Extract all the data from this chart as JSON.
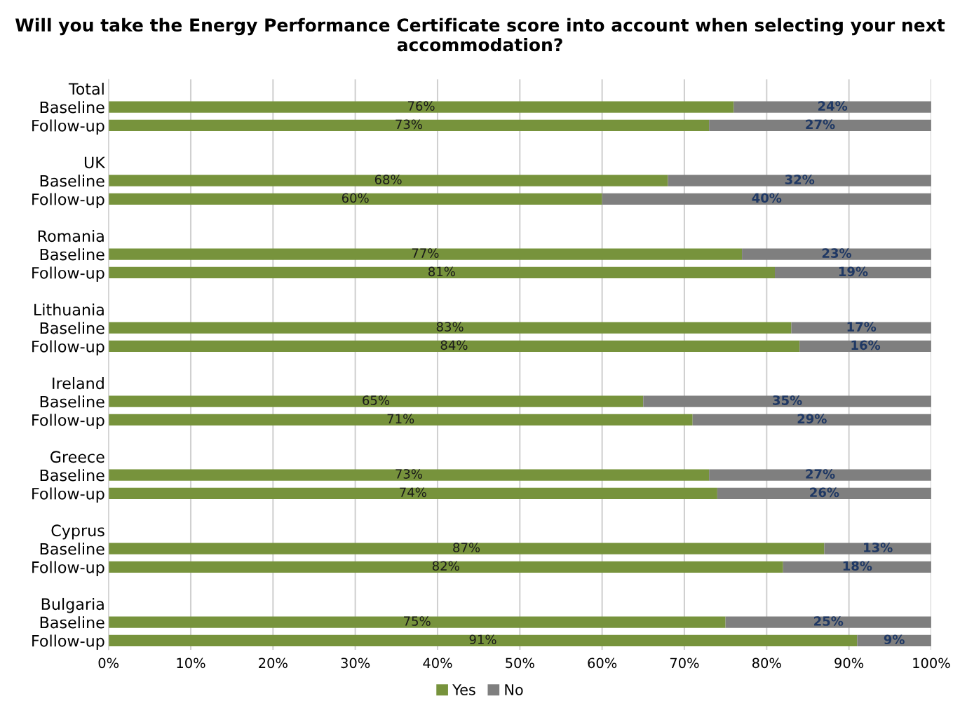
{
  "chart_data": {
    "type": "bar",
    "orientation": "horizontal",
    "stacked": true,
    "title": "Will you take the Energy Performance Certificate score into account when selecting your next accommodation?",
    "categories": [
      "Total",
      "Baseline",
      "Follow-up",
      null,
      "UK",
      "Baseline",
      "Follow-up",
      null,
      "Romania",
      "Baseline",
      "Follow-up",
      null,
      "Lithuania",
      "Baseline",
      "Follow-up",
      null,
      "Ireland",
      "Baseline",
      "Follow-up",
      null,
      "Greece",
      "Baseline",
      "Follow-up",
      null,
      "Cyprus",
      "Baseline",
      "Follow-up",
      null,
      "Bulgaria",
      "Baseline",
      "Follow-up"
    ],
    "series": [
      {
        "name": "Yes",
        "color": "#77933c",
        "values": [
          null,
          76,
          73,
          null,
          null,
          68,
          60,
          null,
          null,
          77,
          81,
          null,
          null,
          83,
          84,
          null,
          null,
          65,
          71,
          null,
          null,
          73,
          74,
          null,
          null,
          87,
          82,
          null,
          null,
          75,
          91
        ],
        "value_labels": [
          null,
          "76%",
          "73%",
          null,
          null,
          "68%",
          "60%",
          null,
          null,
          "77%",
          "81%",
          null,
          null,
          "83%",
          "84%",
          null,
          null,
          "65%",
          "71%",
          null,
          null,
          "73%",
          "74%",
          null,
          null,
          "87%",
          "82%",
          null,
          null,
          "75%",
          "91%"
        ]
      },
      {
        "name": "No",
        "color": "#7f7f7f",
        "values": [
          null,
          24,
          27,
          null,
          null,
          32,
          40,
          null,
          null,
          23,
          19,
          null,
          null,
          17,
          16,
          null,
          null,
          35,
          29,
          null,
          null,
          27,
          26,
          null,
          null,
          13,
          18,
          null,
          null,
          25,
          9
        ],
        "value_labels": [
          null,
          "24%",
          "27%",
          null,
          null,
          "32%",
          "40%",
          null,
          null,
          "23%",
          "19%",
          null,
          null,
          "17%",
          "16%",
          null,
          null,
          "35%",
          "29%",
          null,
          null,
          "27%",
          "26%",
          null,
          null,
          "13%",
          "18%",
          null,
          null,
          "25%",
          "9%"
        ]
      }
    ],
    "xlim": [
      0,
      100
    ],
    "xticks": [
      {
        "value": 0,
        "label": "0%"
      },
      {
        "value": 10,
        "label": "10%"
      },
      {
        "value": 20,
        "label": "20%"
      },
      {
        "value": 30,
        "label": "30%"
      },
      {
        "value": 40,
        "label": "40%"
      },
      {
        "value": 50,
        "label": "50%"
      },
      {
        "value": 60,
        "label": "60%"
      },
      {
        "value": 70,
        "label": "70%"
      },
      {
        "value": 80,
        "label": "80%"
      },
      {
        "value": 90,
        "label": "90%"
      },
      {
        "value": 100,
        "label": "100%"
      }
    ],
    "grid": "x",
    "legend": "bottom"
  }
}
